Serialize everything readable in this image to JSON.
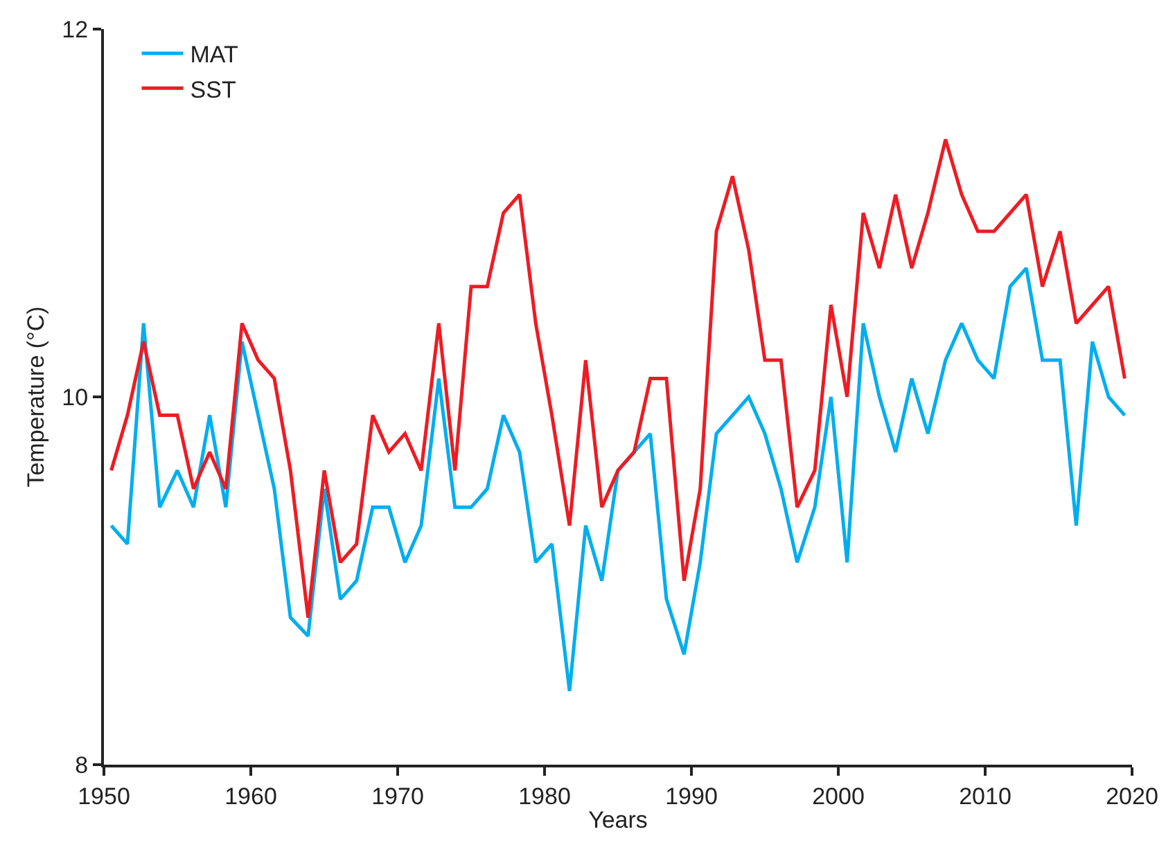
{
  "chart_data": {
    "type": "line",
    "xlabel": "Years",
    "ylabel": "Temperature (°C)",
    "x": [
      1950.5,
      1951.6,
      1952.7,
      1953.8,
      1955.0,
      1956.1,
      1957.2,
      1958.3,
      1959.4,
      1960.5,
      1961.6,
      1962.7,
      1963.9,
      1965.0,
      1966.1,
      1967.2,
      1968.3,
      1969.4,
      1970.5,
      1971.6,
      1972.8,
      1973.9,
      1975.0,
      1976.1,
      1977.2,
      1978.3,
      1979.4,
      1980.5,
      1981.7,
      1982.8,
      1983.9,
      1985.0,
      1986.1,
      1987.2,
      1988.3,
      1989.5,
      1990.6,
      1991.7,
      1992.8,
      1993.9,
      1995.0,
      1996.1,
      1997.2,
      1998.4,
      1999.5,
      2000.6,
      2001.7,
      2002.8,
      2003.9,
      2005.0,
      2006.1,
      2007.3,
      2008.4,
      2009.5,
      2010.6,
      2011.7,
      2012.8,
      2013.9,
      2015.1,
      2016.2,
      2017.3,
      2018.4,
      2019.5
    ],
    "series": [
      {
        "name": "MAT",
        "color": "#00aeef",
        "values": [
          9.3,
          9.2,
          10.4,
          9.4,
          9.6,
          9.4,
          9.9,
          9.4,
          10.3,
          9.9,
          9.5,
          8.8,
          8.7,
          9.5,
          8.9,
          9.0,
          9.4,
          9.4,
          9.1,
          9.3,
          10.1,
          9.4,
          9.4,
          9.5,
          9.9,
          9.7,
          9.1,
          9.2,
          8.4,
          9.3,
          9.0,
          9.6,
          9.7,
          9.8,
          8.9,
          8.6,
          9.1,
          9.8,
          9.9,
          10.0,
          9.8,
          9.5,
          9.1,
          9.4,
          10.0,
          9.1,
          10.4,
          10.0,
          9.7,
          10.1,
          9.8,
          10.2,
          10.4,
          10.2,
          10.1,
          10.6,
          10.7,
          10.2,
          10.2,
          9.3,
          10.3,
          10.0,
          9.9
        ]
      },
      {
        "name": "SST",
        "color": "#ed1c24",
        "values": [
          9.6,
          9.9,
          10.3,
          9.9,
          9.9,
          9.5,
          9.7,
          9.5,
          10.4,
          10.2,
          10.1,
          9.6,
          8.8,
          9.6,
          9.1,
          9.2,
          9.9,
          9.7,
          9.8,
          9.6,
          10.4,
          9.6,
          10.6,
          10.6,
          11.0,
          11.1,
          10.4,
          9.9,
          9.3,
          10.2,
          9.4,
          9.6,
          9.7,
          10.1,
          10.1,
          9.0,
          9.5,
          10.9,
          11.2,
          10.8,
          10.2,
          10.2,
          9.4,
          9.6,
          10.5,
          10.0,
          11.0,
          10.7,
          11.1,
          10.7,
          11.0,
          11.4,
          11.1,
          10.9,
          10.9,
          11.0,
          11.1,
          10.6,
          10.9,
          10.4,
          10.5,
          10.6,
          10.1
        ]
      }
    ],
    "xlim": [
      1950,
      2020
    ],
    "xticks": [
      1950,
      1960,
      1970,
      1980,
      1990,
      2000,
      2010,
      2020
    ],
    "ylim": [
      8,
      12
    ],
    "yticks": [
      8,
      10,
      12
    ],
    "legend": "top left",
    "marker": "none",
    "line_style": "solid"
  }
}
